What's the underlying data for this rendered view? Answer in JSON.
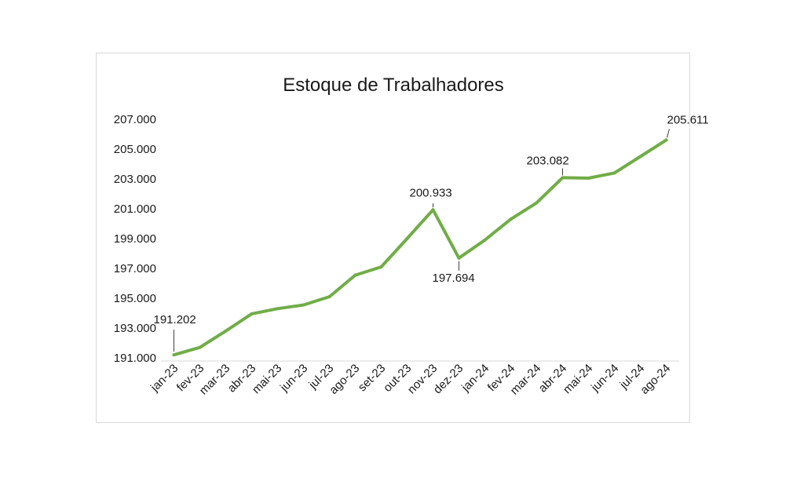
{
  "chart_data": {
    "type": "line",
    "title": "Estoque de Trabalhadores",
    "xlabel": "",
    "ylabel": "",
    "ylim": [
      191000,
      207000
    ],
    "yticks": [
      "191.000",
      "193.000",
      "195.000",
      "197.000",
      "199.000",
      "201.000",
      "203.000",
      "205.000",
      "207.000"
    ],
    "ytick_values": [
      191000,
      193000,
      195000,
      197000,
      199000,
      201000,
      203000,
      205000,
      207000
    ],
    "categories": [
      "jan-23",
      "fev-23",
      "mar-23",
      "abr-23",
      "mai-23",
      "jun-23",
      "jul-23",
      "ago-23",
      "set-23",
      "out-23",
      "nov-23",
      "dez-23",
      "jan-24",
      "fev-24",
      "mar-24",
      "abr-24",
      "mai-24",
      "jun-24",
      "jul-24",
      "ago-24"
    ],
    "values": [
      191202,
      191700,
      192800,
      193950,
      194300,
      194550,
      195100,
      196550,
      197100,
      199000,
      200933,
      197694,
      198900,
      200300,
      201400,
      203082,
      203050,
      203400,
      204500,
      205611
    ],
    "color": "#70ad47",
    "grid": false,
    "legend": "none",
    "data_labels": [
      {
        "index": 0,
        "text": "191.202"
      },
      {
        "index": 10,
        "text": "200.933"
      },
      {
        "index": 11,
        "text": "197.694"
      },
      {
        "index": 15,
        "text": "203.082"
      },
      {
        "index": 19,
        "text": "205.611"
      }
    ]
  }
}
